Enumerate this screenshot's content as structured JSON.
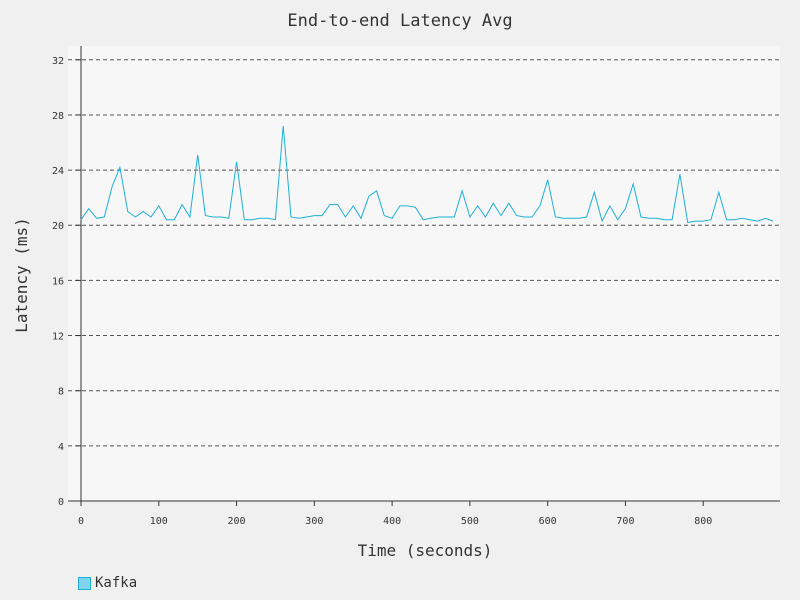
{
  "chart_data": {
    "type": "line",
    "title": "End-to-end Latency Avg",
    "xlabel": "Time (seconds)",
    "ylabel": "Latency (ms)",
    "xlim": [
      0,
      900
    ],
    "ylim": [
      0,
      33
    ],
    "xticks": [
      0,
      100,
      200,
      300,
      400,
      500,
      600,
      700,
      800
    ],
    "yticks": [
      0,
      4,
      8,
      12,
      16,
      20,
      24,
      28,
      32
    ],
    "grid": "horizontal dashed",
    "legend_position": "bottom-left",
    "series": [
      {
        "name": "Kafka",
        "color": "#1fb0d6",
        "x": [
          0,
          10,
          20,
          30,
          40,
          50,
          60,
          70,
          80,
          90,
          100,
          110,
          120,
          130,
          140,
          150,
          160,
          170,
          180,
          190,
          200,
          210,
          220,
          230,
          240,
          250,
          260,
          270,
          280,
          290,
          300,
          310,
          320,
          330,
          340,
          350,
          360,
          370,
          380,
          390,
          400,
          410,
          420,
          430,
          440,
          450,
          460,
          470,
          480,
          490,
          500,
          510,
          520,
          530,
          540,
          550,
          560,
          570,
          580,
          590,
          600,
          610,
          620,
          630,
          640,
          650,
          660,
          670,
          680,
          690,
          700,
          710,
          720,
          730,
          740,
          750,
          760,
          770,
          780,
          790,
          800,
          810,
          820,
          830,
          840,
          850,
          860,
          870,
          880,
          890
        ],
        "y": [
          20.4,
          21.2,
          20.5,
          20.6,
          22.8,
          24.2,
          21.0,
          20.6,
          21.0,
          20.6,
          21.4,
          20.4,
          20.4,
          21.5,
          20.6,
          25.1,
          20.7,
          20.6,
          20.6,
          20.5,
          24.6,
          20.4,
          20.4,
          20.5,
          20.5,
          20.4,
          27.2,
          20.6,
          20.5,
          20.6,
          20.7,
          20.7,
          21.5,
          21.5,
          20.6,
          21.4,
          20.5,
          22.1,
          22.5,
          20.7,
          20.5,
          21.4,
          21.4,
          21.3,
          20.4,
          20.5,
          20.6,
          20.6,
          20.6,
          22.5,
          20.6,
          21.4,
          20.6,
          21.6,
          20.7,
          21.6,
          20.7,
          20.6,
          20.6,
          21.4,
          23.3,
          20.6,
          20.5,
          20.5,
          20.5,
          20.6,
          22.4,
          20.3,
          21.4,
          20.4,
          21.2,
          23.0,
          20.6,
          20.5,
          20.5,
          20.4,
          20.4,
          23.7,
          20.2,
          20.3,
          20.3,
          20.4,
          22.4,
          20.4,
          20.4,
          20.5,
          20.4,
          20.3,
          20.5,
          20.3
        ]
      }
    ]
  }
}
